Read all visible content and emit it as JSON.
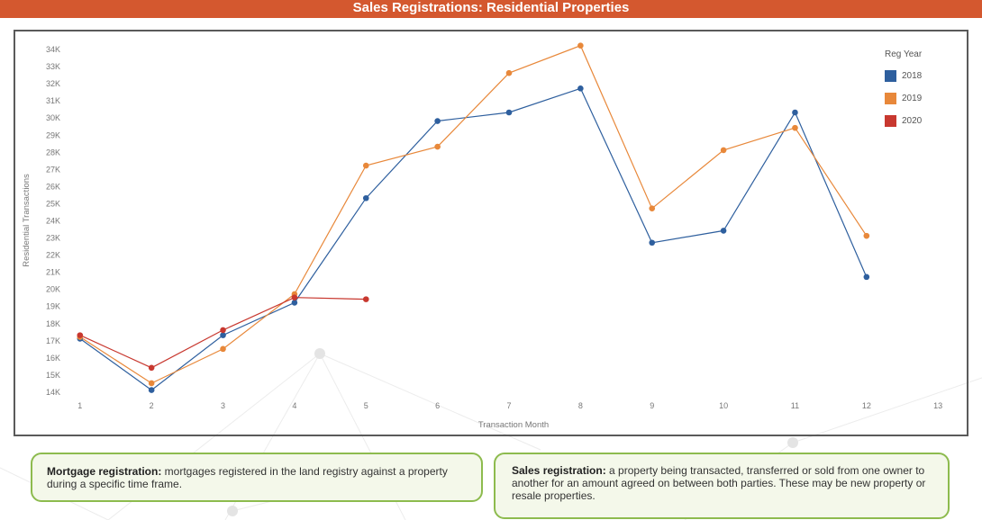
{
  "header": {
    "title": "Sales Registrations: Residential Properties"
  },
  "chart_data": {
    "type": "line",
    "xlabel": "Transaction Month",
    "ylabel": "Residential Transactions",
    "xlim": [
      0.7,
      13.3
    ],
    "ylim": [
      13500,
      34500
    ],
    "x_ticks": [
      1,
      2,
      3,
      4,
      5,
      6,
      7,
      8,
      9,
      10,
      11,
      12,
      13
    ],
    "y_ticks": [
      {
        "value": 14000,
        "label": "14K"
      },
      {
        "value": 15000,
        "label": "15K"
      },
      {
        "value": 16000,
        "label": "16K"
      },
      {
        "value": 17000,
        "label": "17K"
      },
      {
        "value": 18000,
        "label": "18K"
      },
      {
        "value": 19000,
        "label": "19K"
      },
      {
        "value": 20000,
        "label": "20K"
      },
      {
        "value": 21000,
        "label": "21K"
      },
      {
        "value": 22000,
        "label": "22K"
      },
      {
        "value": 23000,
        "label": "23K"
      },
      {
        "value": 24000,
        "label": "24K"
      },
      {
        "value": 25000,
        "label": "25K"
      },
      {
        "value": 26000,
        "label": "26K"
      },
      {
        "value": 27000,
        "label": "27K"
      },
      {
        "value": 28000,
        "label": "28K"
      },
      {
        "value": 29000,
        "label": "29K"
      },
      {
        "value": 30000,
        "label": "30K"
      },
      {
        "value": 31000,
        "label": "31K"
      },
      {
        "value": 32000,
        "label": "32K"
      },
      {
        "value": 33000,
        "label": "33K"
      },
      {
        "value": 34000,
        "label": "34K"
      }
    ],
    "legend_title": "Reg Year",
    "legend_position": "top-right",
    "grid": false,
    "series": [
      {
        "name": "2018",
        "color": "#2e5f9e",
        "x": [
          1,
          2,
          3,
          4,
          5,
          6,
          7,
          8,
          9,
          10,
          11,
          12
        ],
        "values": [
          17100,
          14100,
          17300,
          19200,
          25300,
          29800,
          30300,
          31700,
          22700,
          23400,
          30300,
          20700
        ]
      },
      {
        "name": "2019",
        "color": "#e8883a",
        "x": [
          1,
          2,
          3,
          4,
          5,
          6,
          7,
          8,
          9,
          10,
          11,
          12
        ],
        "values": [
          17200,
          14500,
          16500,
          19700,
          27200,
          28300,
          32600,
          34200,
          24700,
          28100,
          29400,
          23100
        ]
      },
      {
        "name": "2020",
        "color": "#c8382f",
        "x": [
          1,
          2,
          3,
          4,
          5
        ],
        "values": [
          17300,
          15400,
          17600,
          19500,
          19400
        ]
      }
    ]
  },
  "definitions": {
    "mortgage": {
      "term": "Mortgage registration:",
      "text": " mortgages registered in the land registry against a property during a specific time frame."
    },
    "sales": {
      "term": "Sales registration:",
      "text": " a property being transacted, transferred or sold from one owner to another for an amount agreed on between both parties. These may be new property or resale properties."
    }
  }
}
